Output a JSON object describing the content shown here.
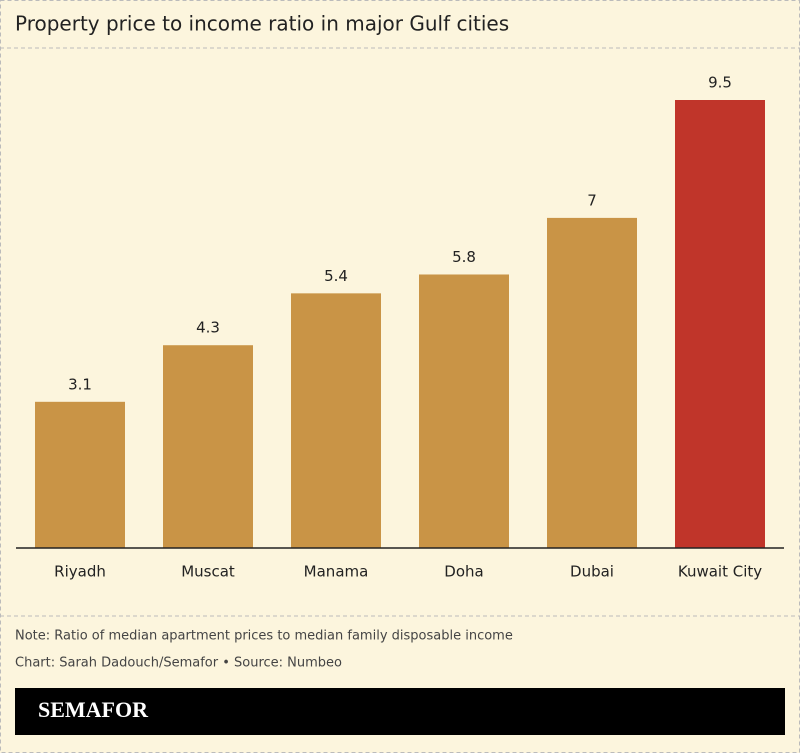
{
  "chart_data": {
    "type": "bar",
    "title": "Property price to income ratio in major Gulf cities",
    "categories": [
      "Riyadh",
      "Muscat",
      "Manama",
      "Doha",
      "Dubai",
      "Kuwait City"
    ],
    "values": [
      3.1,
      4.3,
      5.4,
      5.8,
      7,
      9.5
    ],
    "colors": [
      "#c99446",
      "#c99446",
      "#c99446",
      "#c99446",
      "#c99446",
      "#c0352a"
    ],
    "note": "Note: Ratio of median apartment prices to median family disposable income",
    "source": "Chart: Sarah Dadouch/Semafor • Source: Numbeo"
  },
  "brand": "SEMAFOR"
}
